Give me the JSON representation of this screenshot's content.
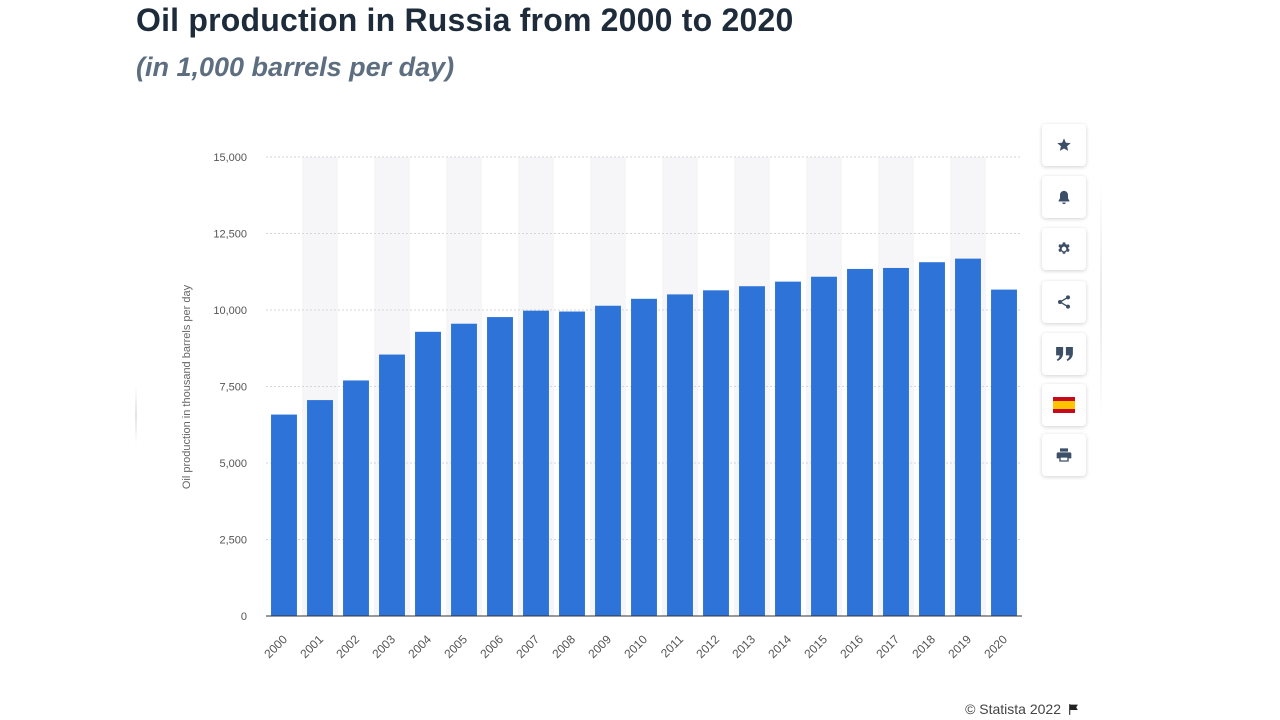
{
  "chart_data": {
    "type": "bar",
    "title": "Oil production in Russia from 2000 to 2020",
    "subtitle": "(in 1,000 barrels per day)",
    "xlabel": "",
    "ylabel": "Oil production in thousand barrels per day",
    "categories": [
      "2000",
      "2001",
      "2002",
      "2003",
      "2004",
      "2005",
      "2006",
      "2007",
      "2008",
      "2009",
      "2010",
      "2011",
      "2012",
      "2013",
      "2014",
      "2015",
      "2016",
      "2017",
      "2018",
      "2019",
      "2020"
    ],
    "values": [
      6583,
      7056,
      7698,
      8544,
      9287,
      9552,
      9769,
      9978,
      9950,
      10139,
      10366,
      10510,
      10643,
      10777,
      10927,
      11087,
      11342,
      11374,
      11562,
      11679,
      10667
    ],
    "ylim": [
      0,
      15000
    ],
    "yticks": [
      "0",
      "2,500",
      "5,000",
      "7,500",
      "10,000",
      "12,500",
      "15,000"
    ],
    "grid": true,
    "bar_color": "#2e74d8",
    "band_color": "#f6f6f8"
  },
  "toolbar": {
    "buttons": [
      {
        "name": "favorite",
        "icon": "star-icon"
      },
      {
        "name": "notification",
        "icon": "bell-icon"
      },
      {
        "name": "settings",
        "icon": "gear-icon"
      },
      {
        "name": "share",
        "icon": "share-icon"
      },
      {
        "name": "cite",
        "icon": "quote-icon"
      },
      {
        "name": "language",
        "icon": "spain-flag-icon"
      },
      {
        "name": "print",
        "icon": "printer-icon"
      }
    ]
  },
  "footer": {
    "copyright": "© Statista 2022"
  }
}
